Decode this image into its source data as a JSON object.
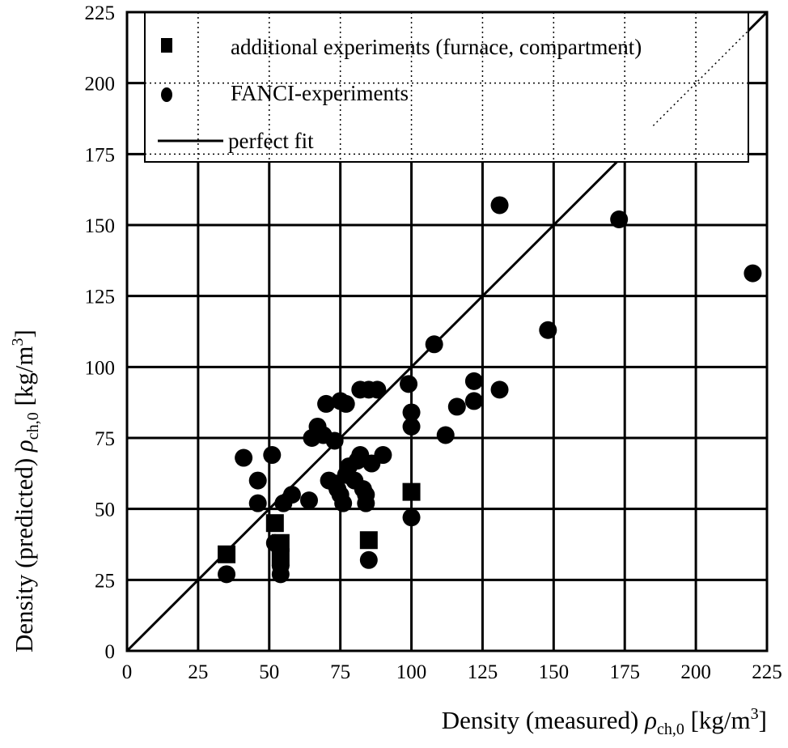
{
  "chart_data": {
    "type": "scatter",
    "title": "",
    "xlabel": {
      "text": "Density (measured) ",
      "symbol": "ρ",
      "sub": "ch,0",
      "unit_pre": " [kg/m",
      "unit_sup": "3",
      "unit_post": "]"
    },
    "ylabel": {
      "text": "Density (predicted) ",
      "symbol": "ρ",
      "sub": "ch,0",
      "unit_pre": " [kg/m",
      "unit_sup": "3",
      "unit_post": "]"
    },
    "xlim": [
      0,
      225
    ],
    "ylim": [
      0,
      225
    ],
    "xticks": [
      "0",
      "25",
      "50",
      "75",
      "100",
      "125",
      "150",
      "175",
      "200",
      "225"
    ],
    "yticks": [
      "0",
      "25",
      "50",
      "75",
      "100",
      "125",
      "150",
      "175",
      "200",
      "225"
    ],
    "grid": true,
    "legend_position": "top",
    "series": [
      {
        "name": "additional experiments (furnace, compartment)",
        "marker": "square",
        "points": [
          [
            35,
            34
          ],
          [
            52,
            45
          ],
          [
            54,
            38
          ],
          [
            54,
            33
          ],
          [
            100,
            56
          ],
          [
            85,
            39
          ]
        ]
      },
      {
        "name": "FANCI-experiments",
        "marker": "circle",
        "points": [
          [
            35,
            27
          ],
          [
            41,
            68
          ],
          [
            46,
            60
          ],
          [
            46,
            52
          ],
          [
            51,
            69
          ],
          [
            52,
            38
          ],
          [
            54,
            27
          ],
          [
            54,
            30
          ],
          [
            55,
            52
          ],
          [
            58,
            55
          ],
          [
            64,
            53
          ],
          [
            65,
            75
          ],
          [
            67,
            79
          ],
          [
            69,
            76
          ],
          [
            70,
            87
          ],
          [
            71,
            60
          ],
          [
            73,
            74
          ],
          [
            73,
            59
          ],
          [
            74,
            57
          ],
          [
            75,
            55
          ],
          [
            75,
            88
          ],
          [
            76,
            52
          ],
          [
            77,
            62
          ],
          [
            77,
            87
          ],
          [
            78,
            65
          ],
          [
            80,
            60
          ],
          [
            81,
            67
          ],
          [
            82,
            69
          ],
          [
            82,
            92
          ],
          [
            83,
            57
          ],
          [
            84,
            55
          ],
          [
            84,
            52
          ],
          [
            85,
            32
          ],
          [
            85,
            92
          ],
          [
            86,
            66
          ],
          [
            88,
            92
          ],
          [
            90,
            69
          ],
          [
            99,
            94
          ],
          [
            100,
            84
          ],
          [
            100,
            79
          ],
          [
            100,
            47
          ],
          [
            108,
            108
          ],
          [
            112,
            76
          ],
          [
            116,
            86
          ],
          [
            122,
            95
          ],
          [
            122,
            88
          ],
          [
            131,
            157
          ],
          [
            131,
            92
          ],
          [
            148,
            113
          ],
          [
            173,
            152
          ],
          [
            220,
            133
          ]
        ]
      },
      {
        "name": "perfect fit",
        "marker": "line",
        "points": [
          [
            0,
            0
          ],
          [
            225,
            225
          ]
        ]
      }
    ]
  }
}
